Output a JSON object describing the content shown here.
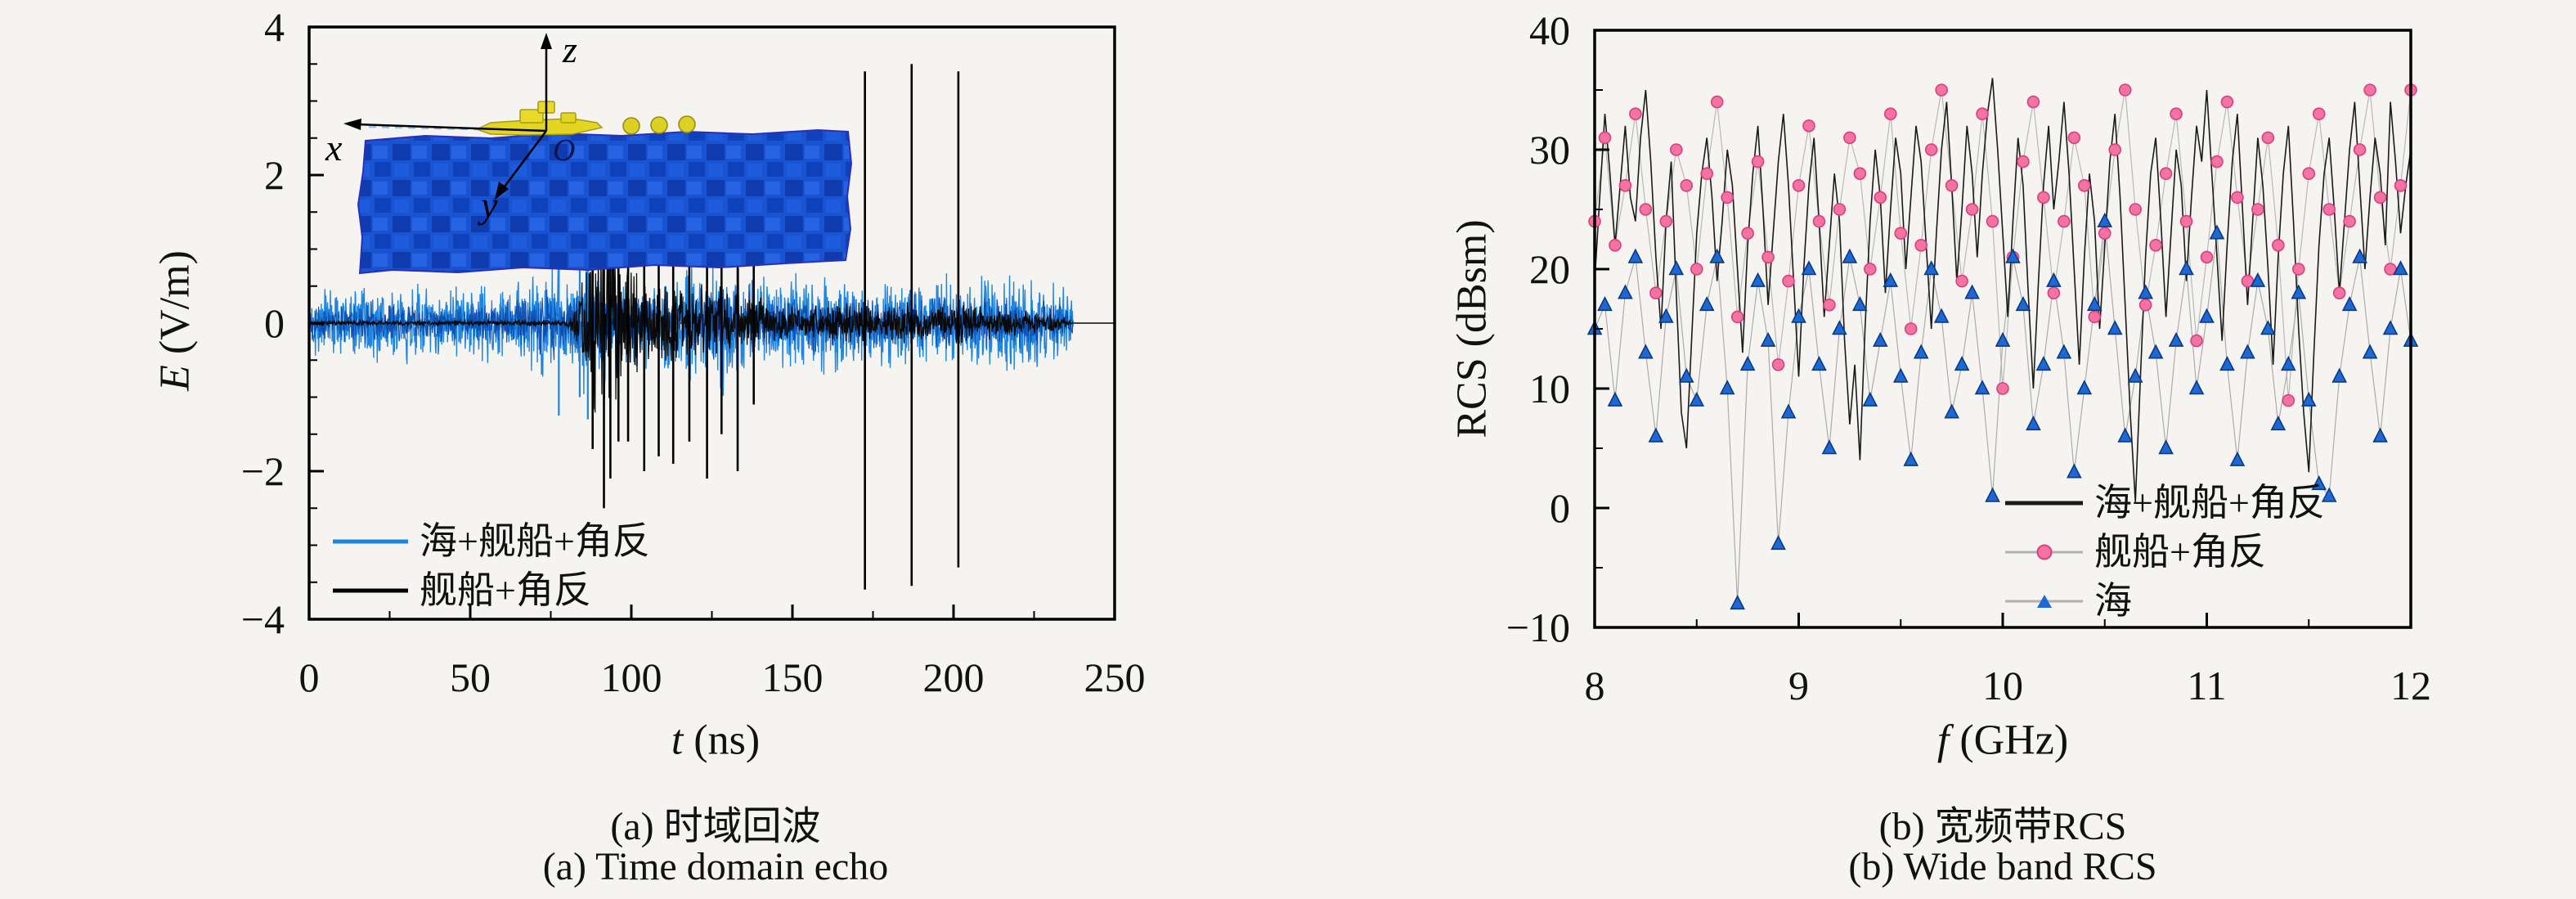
{
  "figure": {
    "background": "#f5f4f1"
  },
  "panel_a": {
    "ylabel_var": "E",
    "ylabel_rest": " (V/m)",
    "xlabel_var": "t",
    "xlabel_rest": " (ns)",
    "caption_zh": "(a) 时域回波",
    "caption_en": "(a) Time domain echo",
    "axis": {
      "xlim": [
        0,
        250
      ],
      "ylim": [
        -4,
        4
      ],
      "xtick_values": [
        0,
        50,
        100,
        150,
        200,
        250
      ],
      "xtick_labels": [
        "0",
        "50",
        "100",
        "150",
        "200",
        "250"
      ],
      "xminor_step": 25,
      "ytick_values": [
        4,
        2,
        0,
        -2,
        -4
      ],
      "ytick_labels": [
        "4",
        "2",
        "0",
        "−2",
        "−4"
      ],
      "yminor_step": 0.5
    },
    "legend": [
      {
        "label": "海+舰船+角反",
        "color": "#1f86e0",
        "type": "line"
      },
      {
        "label": "舰船+角反",
        "color": "#000000",
        "type": "line"
      }
    ],
    "inset": {
      "labels": {
        "x": "x",
        "y": "y",
        "z": "z",
        "origin": "O"
      },
      "sea_color": "#1a53d0",
      "sea_dark": "#0e3cae",
      "ship_color": "#e3d622"
    },
    "chart_data": {
      "type": "line",
      "title": "",
      "xlabel": "t (ns)",
      "ylabel": "E (V/m)",
      "xlim": [
        0,
        250
      ],
      "ylim": [
        -4,
        4
      ],
      "series": [
        {
          "name": "海+舰船+角反",
          "color": "#1f86e0",
          "kind": "noise-waveform",
          "envelope": [
            [
              0,
              0.45
            ],
            [
              20,
              0.5
            ],
            [
              40,
              0.45
            ],
            [
              60,
              0.5
            ],
            [
              70,
              0.6
            ],
            [
              76,
              0.85
            ],
            [
              80,
              0.6
            ],
            [
              84,
              0.9
            ],
            [
              88,
              0.75
            ],
            [
              95,
              0.65
            ],
            [
              105,
              0.6
            ],
            [
              115,
              0.7
            ],
            [
              122,
              0.8
            ],
            [
              130,
              0.85
            ],
            [
              140,
              0.6
            ],
            [
              150,
              0.6
            ],
            [
              165,
              0.62
            ],
            [
              180,
              0.6
            ],
            [
              195,
              0.62
            ],
            [
              210,
              0.58
            ],
            [
              225,
              0.6
            ],
            [
              233,
              0.5
            ],
            [
              237,
              0.3
            ],
            [
              237.2,
              0
            ],
            [
              250,
              0
            ]
          ],
          "spikes": [
            [
              77.5,
              1.15,
              -1.25
            ],
            [
              84,
              0.95,
              -1.0
            ],
            [
              86.5,
              1.25,
              -1.3
            ]
          ]
        },
        {
          "name": "舰船+角反",
          "color": "#0a0a0a",
          "kind": "noise-waveform",
          "envelope": [
            [
              0,
              0.03
            ],
            [
              80,
              0.04
            ],
            [
              83,
              0.3
            ],
            [
              86,
              0.9
            ],
            [
              90,
              1.25
            ],
            [
              94,
              1.15
            ],
            [
              98,
              0.8
            ],
            [
              103,
              0.6
            ],
            [
              110,
              0.55
            ],
            [
              118,
              0.5
            ],
            [
              126,
              0.45
            ],
            [
              134,
              0.4
            ],
            [
              142,
              0.3
            ],
            [
              152,
              0.2
            ],
            [
              162,
              0.25
            ],
            [
              170,
              0.3
            ],
            [
              178,
              0.22
            ],
            [
              186,
              0.28
            ],
            [
              194,
              0.22
            ],
            [
              202,
              0.3
            ],
            [
              210,
              0.2
            ],
            [
              222,
              0.15
            ],
            [
              234,
              0.1
            ],
            [
              237,
              0
            ],
            [
              250,
              0
            ]
          ],
          "spikes": [
            [
              88,
              1.5,
              -1.7
            ],
            [
              91.5,
              1.9,
              -2.5
            ],
            [
              93.5,
              1.7,
              -2.1
            ],
            [
              96,
              1.4,
              -1.6
            ],
            [
              99,
              1.5,
              -1.6
            ],
            [
              104,
              1.7,
              -2.0
            ],
            [
              108.5,
              1.9,
              -1.8
            ],
            [
              113,
              1.6,
              -1.9
            ],
            [
              118,
              1.4,
              -1.6
            ],
            [
              123.5,
              2.0,
              -2.1
            ],
            [
              128,
              1.3,
              -1.5
            ],
            [
              133,
              1.8,
              -2.0
            ],
            [
              138,
              1.0,
              -1.1
            ],
            [
              172.5,
              3.4,
              -3.6
            ],
            [
              187,
              3.5,
              -3.55
            ],
            [
              201.5,
              3.4,
              -3.3
            ]
          ]
        }
      ]
    }
  },
  "panel_b": {
    "ylabel_var": "",
    "ylabel_rest": "RCS (dBsm)",
    "xlabel_var": "f",
    "xlabel_rest": " (GHz)",
    "caption_zh": "(b) 宽频带RCS",
    "caption_en": "(b) Wide band RCS",
    "axis": {
      "xlim": [
        8,
        12
      ],
      "ylim": [
        -10,
        40
      ],
      "xtick_values": [
        8,
        9,
        10,
        11,
        12
      ],
      "xtick_labels": [
        "8",
        "9",
        "10",
        "11",
        "12"
      ],
      "xminor_step": 0.5,
      "ytick_values": [
        40,
        30,
        20,
        10,
        0,
        -10
      ],
      "ytick_labels": [
        "40",
        "30",
        "20",
        "10",
        "0",
        "−10"
      ],
      "yminor_step": 5
    },
    "legend": [
      {
        "label": "海+舰船+角反",
        "color": "#1a1a1a",
        "type": "line"
      },
      {
        "label": "舰船+角反",
        "color": "#f472a4",
        "type": "circle"
      },
      {
        "label": "海",
        "color": "#1e68d6",
        "type": "triangle"
      }
    ],
    "chart_data": {
      "type": "line",
      "title": "",
      "xlabel": "f (GHz)",
      "ylabel": "RCS (dBsm)",
      "xlim": [
        8,
        12
      ],
      "ylim": [
        -10,
        40
      ],
      "series": [
        {
          "name": "海+舰船+角反",
          "color": "#1a1a1a",
          "kind": "line",
          "x_start": 8,
          "x_step": 0.025,
          "values": [
            19,
            26,
            33,
            28,
            22,
            27,
            32,
            26,
            24,
            31,
            35,
            29,
            21,
            15,
            24,
            29,
            18,
            8,
            5,
            14,
            23,
            28,
            31,
            26,
            19,
            24,
            30,
            27,
            20,
            13,
            22,
            28,
            32,
            25,
            17,
            23,
            29,
            33,
            27,
            19,
            11,
            20,
            27,
            31,
            24,
            16,
            22,
            28,
            24,
            14,
            7,
            12,
            4,
            15,
            24,
            30,
            26,
            18,
            25,
            31,
            28,
            20,
            26,
            32,
            29,
            22,
            15,
            23,
            30,
            34,
            27,
            19,
            25,
            32,
            28,
            21,
            28,
            33,
            36,
            30,
            23,
            16,
            24,
            31,
            27,
            18,
            10,
            19,
            27,
            32,
            25,
            29,
            34,
            28,
            20,
            12,
            21,
            28,
            24,
            15,
            22,
            29,
            33,
            26,
            17,
            8,
            0.5,
            11,
            21,
            28,
            31,
            24,
            16,
            23,
            30,
            27,
            19,
            26,
            32,
            29,
            35,
            28,
            21,
            14,
            22,
            29,
            33,
            25,
            17,
            24,
            31,
            27,
            20,
            12,
            21,
            28,
            32,
            24,
            15,
            8,
            3,
            13,
            22,
            28,
            31,
            25,
            18,
            24,
            30,
            34,
            27,
            20,
            26,
            31,
            28,
            22,
            34,
            29,
            23,
            27,
            30
          ]
        },
        {
          "name": "舰船+角反",
          "color": "#f472a4",
          "kind": "line-marker",
          "marker": "circle",
          "line_color": "#b8b8b8",
          "x_start": 8,
          "x_step": 0.05,
          "values": [
            24,
            31,
            22,
            27,
            33,
            25,
            18,
            24,
            30,
            27,
            20,
            28,
            34,
            26,
            16,
            23,
            29,
            21,
            12,
            19,
            27,
            32,
            24,
            17,
            25,
            31,
            28,
            20,
            26,
            33,
            23,
            15,
            22,
            30,
            35,
            27,
            19,
            25,
            33,
            24,
            10,
            21,
            29,
            34,
            26,
            18,
            24,
            31,
            27,
            16,
            23,
            30,
            35,
            25,
            17,
            22,
            28,
            33,
            24,
            14,
            21,
            29,
            34,
            26,
            19,
            25,
            31,
            22,
            9,
            20,
            28,
            33,
            25,
            18,
            24,
            30,
            35,
            26,
            20,
            27,
            35
          ]
        },
        {
          "name": "海",
          "color": "#1e68d6",
          "kind": "line-marker",
          "marker": "triangle",
          "line_color": "#ababab",
          "x_start": 8,
          "x_step": 0.05,
          "values": [
            15,
            17,
            9,
            18,
            21,
            13,
            6,
            16,
            20,
            11,
            9,
            17,
            21,
            10,
            -8,
            12,
            19,
            14,
            -3,
            8,
            16,
            20,
            12,
            5,
            15,
            21,
            17,
            9,
            14,
            19,
            11,
            4,
            13,
            20,
            16,
            8,
            12,
            18,
            10,
            1,
            14,
            21,
            17,
            7,
            12,
            19,
            13,
            3,
            10,
            17,
            24,
            15,
            6,
            11,
            18,
            13,
            5,
            14,
            20,
            10,
            16,
            23,
            12,
            4,
            13,
            19,
            15,
            7,
            12,
            18,
            9,
            2,
            1,
            11,
            17,
            21,
            13,
            6,
            15,
            20,
            14
          ]
        }
      ]
    }
  }
}
